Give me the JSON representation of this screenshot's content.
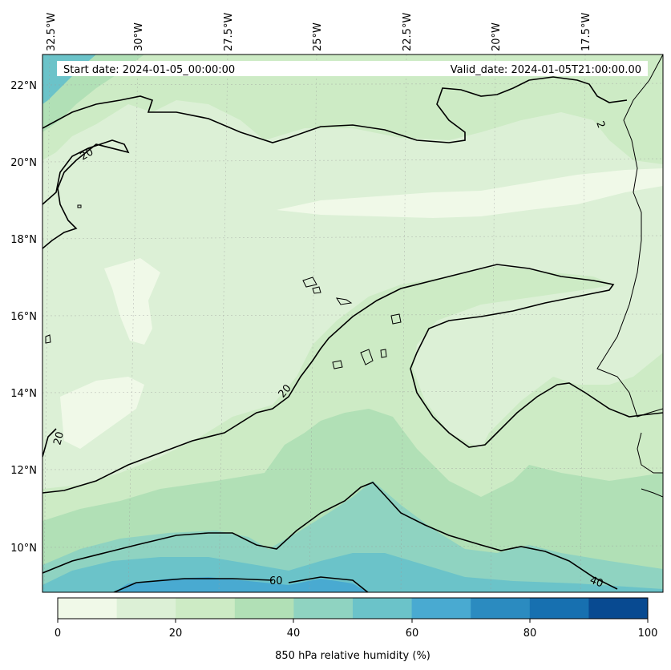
{
  "map": {
    "start_date_text": "Start date: 2024-01-05_00:00:00",
    "valid_date_text": "Valid_date: 2024-01-05T21:00:00.00",
    "longitude_labels": [
      "32.5°W",
      "30°W",
      "27.5°W",
      "25°W",
      "22.5°W",
      "20°W",
      "17.5°W"
    ],
    "latitude_labels": [
      "22°N",
      "20°N",
      "18°N",
      "16°N",
      "14°N",
      "12°N",
      "10°N"
    ],
    "contour_labels": [
      {
        "text": "20"
      },
      {
        "text": "20"
      },
      {
        "text": "20"
      },
      {
        "text": "2"
      },
      {
        "text": "60"
      },
      {
        "text": "40"
      }
    ]
  },
  "colorbar": {
    "title": "850 hPa relative humidity (%)",
    "tick_labels": [
      "0",
      "20",
      "40",
      "60",
      "80",
      "100"
    ],
    "levels": [
      0,
      10,
      20,
      30,
      40,
      50,
      60,
      70,
      80,
      90,
      100
    ],
    "colors": [
      "#f0f9e8",
      "#dcf0d6",
      "#cdebc5",
      "#b1e0b6",
      "#8fd3c1",
      "#6bc3c9",
      "#49aad1",
      "#2b8bc0",
      "#1770b0",
      "#084a91"
    ]
  }
}
